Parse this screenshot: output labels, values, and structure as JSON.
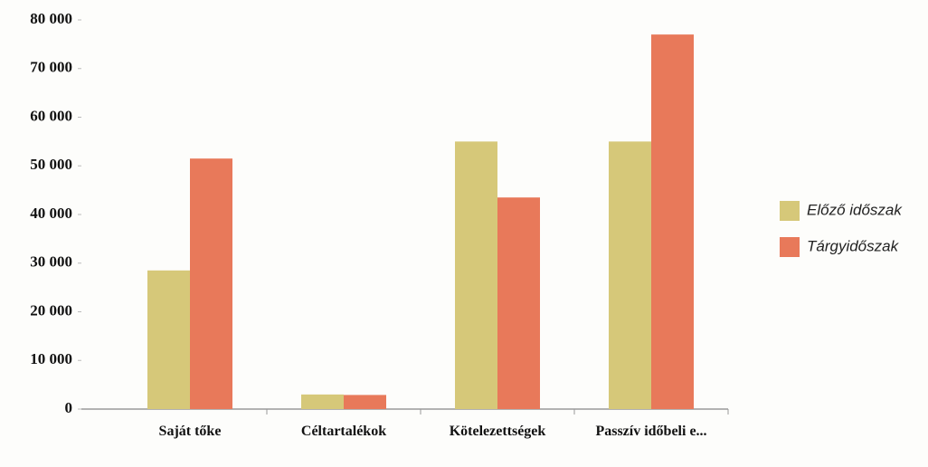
{
  "chart_data": {
    "type": "bar",
    "categories": [
      "Saját tőke",
      "Céltartalékok",
      "Kötelezettségek",
      "Passzív időbeli e..."
    ],
    "series": [
      {
        "name": "Előző időszak",
        "color": "#d6c879",
        "values": [
          28500,
          3000,
          55000,
          55000
        ]
      },
      {
        "name": "Tárgyidőszak",
        "color": "#e8795a",
        "values": [
          51500,
          2900,
          43500,
          77000
        ]
      }
    ],
    "ylim": [
      0,
      80000
    ],
    "yticks": [
      {
        "value": 0,
        "label": "0"
      },
      {
        "value": 10000,
        "label": "10 000"
      },
      {
        "value": 20000,
        "label": "20 000"
      },
      {
        "value": 30000,
        "label": "30 000"
      },
      {
        "value": 40000,
        "label": "40 000"
      },
      {
        "value": 50000,
        "label": "50 000"
      },
      {
        "value": 60000,
        "label": "60 000"
      },
      {
        "value": 70000,
        "label": "70 000"
      },
      {
        "value": 80000,
        "label": "80 000"
      }
    ],
    "grid": false,
    "legend": "right"
  }
}
